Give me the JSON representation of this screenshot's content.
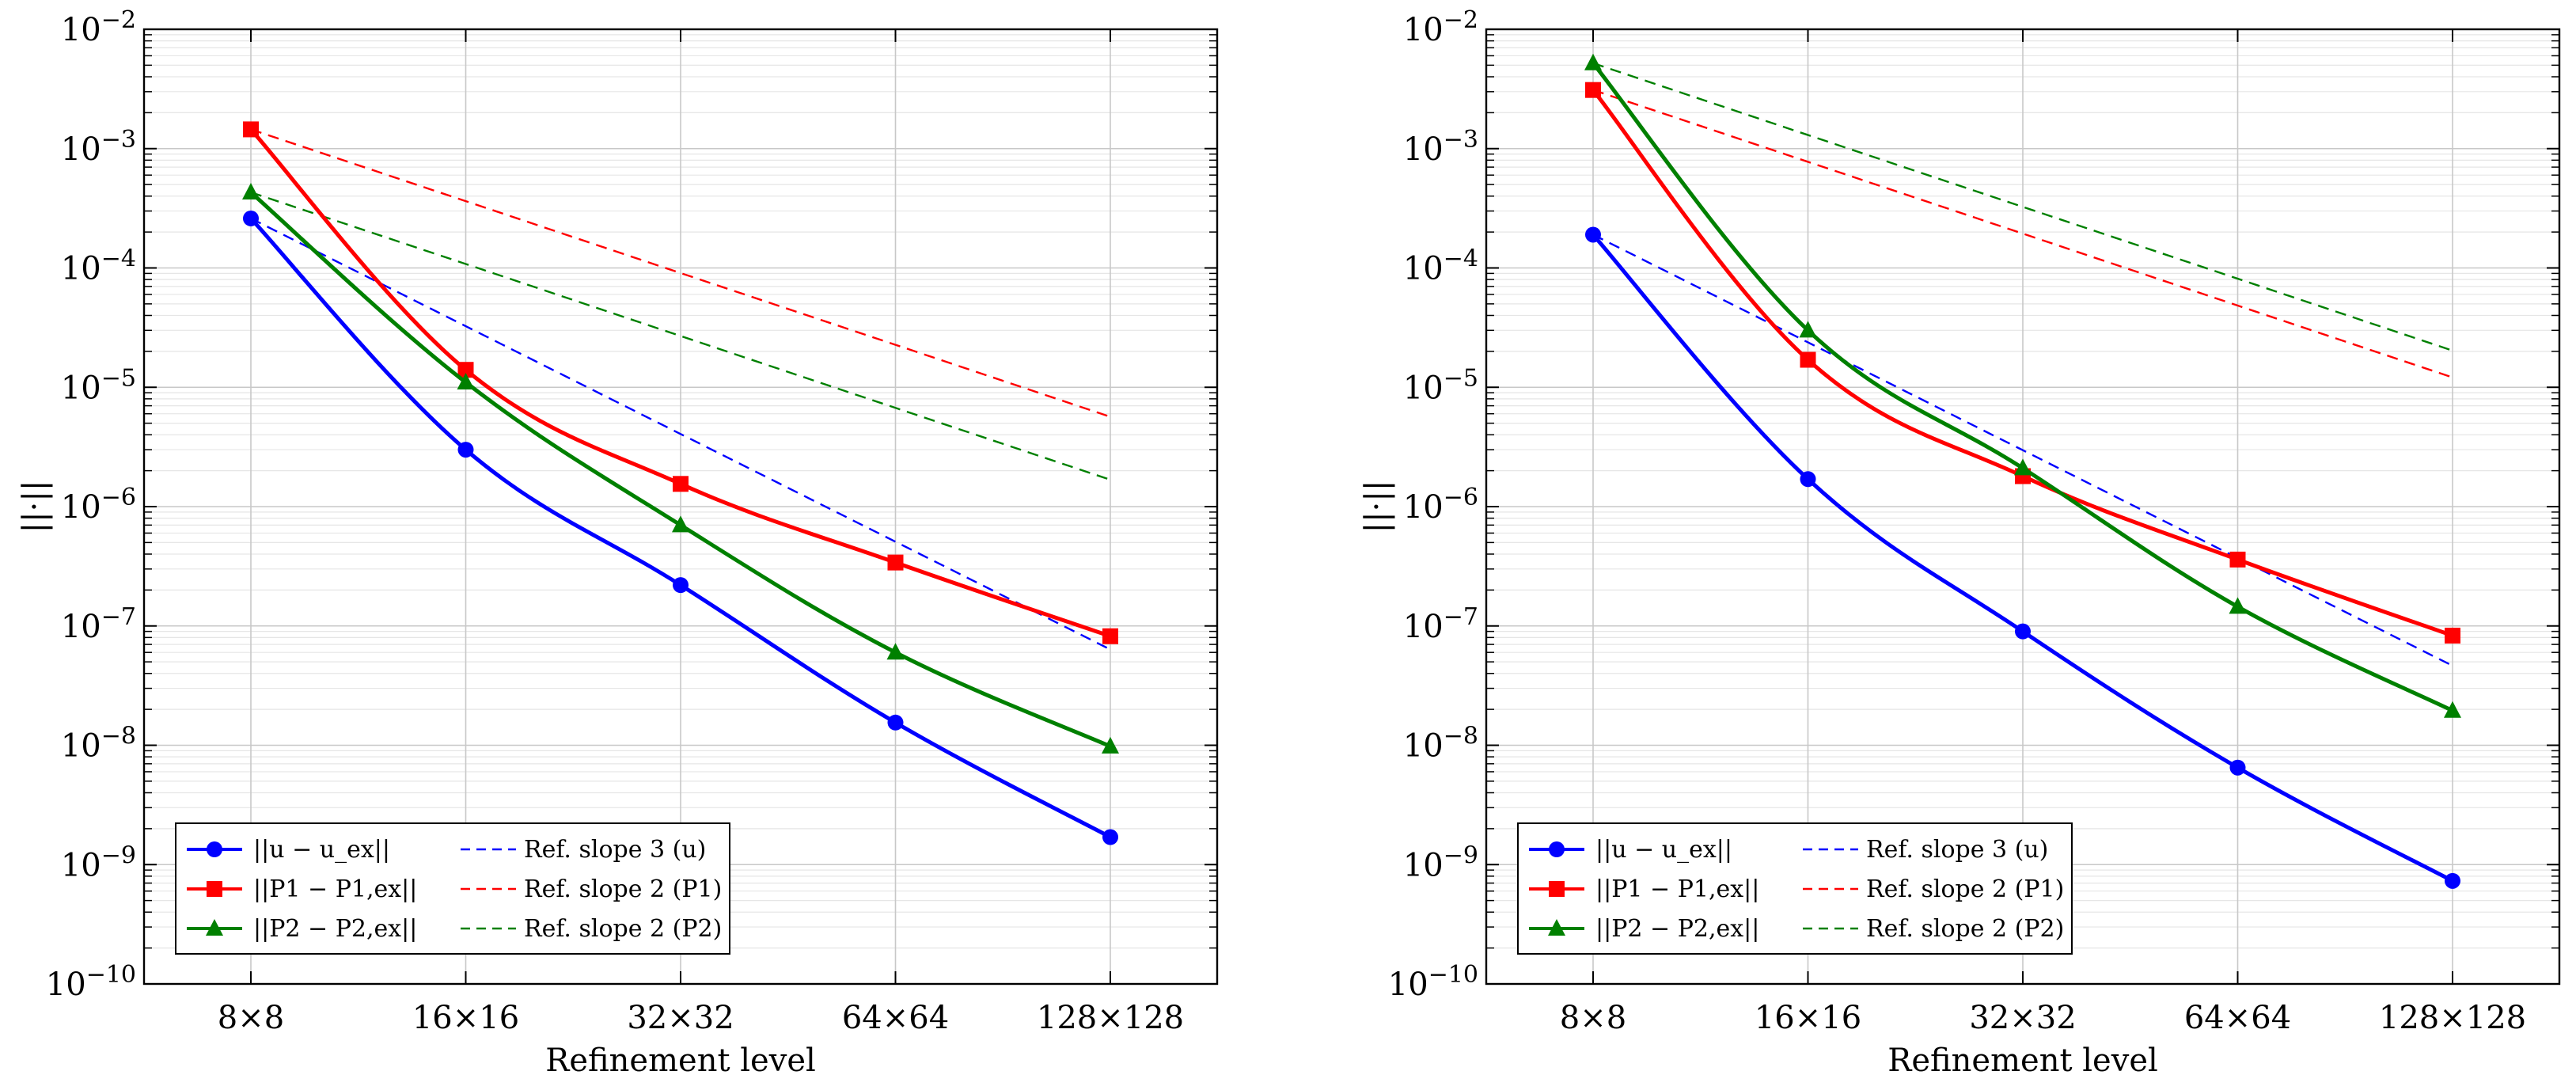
{
  "chart_data": [
    {
      "type": "line",
      "yscale": "log",
      "xlabel": "Refinement level",
      "ylabel": "||·||",
      "categories": [
        "8×8",
        "16×16",
        "32×32",
        "64×64",
        "128×128"
      ],
      "ylim": [
        1e-10,
        0.01
      ],
      "y_tick_labels": [
        "10^-10",
        "10^-9",
        "10^-8",
        "10^-7",
        "10^-6",
        "10^-5",
        "10^-4",
        "10^-3",
        "10^-2"
      ],
      "grid": true,
      "legend": "bottom-left",
      "series": [
        {
          "name": "||u − u_ex||",
          "color": "#0000ff",
          "style": "solid",
          "marker": "circle",
          "values": [
            0.00026,
            3e-06,
            2.2e-07,
            1.55e-08,
            1.7e-09
          ]
        },
        {
          "name": "||P1 − P1,ex||",
          "color": "#ff0000",
          "style": "solid",
          "marker": "square",
          "values": [
            0.00145,
            1.4e-05,
            1.55e-06,
            3.4e-07,
            8.2e-08
          ]
        },
        {
          "name": "||P2 − P2,ex||",
          "color": "#008000",
          "style": "solid",
          "marker": "triangle",
          "values": [
            0.00043,
            1.1e-05,
            7e-07,
            6e-08,
            9.8e-09
          ]
        },
        {
          "name": "Ref. slope 3 (u)",
          "color": "#0000ff",
          "style": "dashed",
          "marker": "none",
          "values": [
            0.00026,
            3.25e-05,
            4.06e-06,
            5.08e-07,
            6.35e-08
          ]
        },
        {
          "name": "Ref. slope 2 (P1)",
          "color": "#ff0000",
          "style": "dashed",
          "marker": "none",
          "values": [
            0.00145,
            0.000363,
            9.06e-05,
            2.27e-05,
            5.66e-06
          ]
        },
        {
          "name": "Ref. slope 2 (P2)",
          "color": "#008000",
          "style": "dashed",
          "marker": "none",
          "values": [
            0.00043,
            0.000108,
            2.69e-05,
            6.72e-06,
            1.68e-06
          ]
        }
      ]
    },
    {
      "type": "line",
      "yscale": "log",
      "xlabel": "Refinement level",
      "ylabel": "||·||",
      "categories": [
        "8×8",
        "16×16",
        "32×32",
        "64×64",
        "128×128"
      ],
      "ylim": [
        1e-10,
        0.01
      ],
      "y_tick_labels": [
        "10^-10",
        "10^-9",
        "10^-8",
        "10^-7",
        "10^-6",
        "10^-5",
        "10^-4",
        "10^-3",
        "10^-2"
      ],
      "grid": true,
      "legend": "bottom-left",
      "series": [
        {
          "name": "||u − u_ex||",
          "color": "#0000ff",
          "style": "solid",
          "marker": "circle",
          "values": [
            0.00019,
            1.7e-06,
            9e-08,
            6.5e-09,
            7.3e-10
          ]
        },
        {
          "name": "||P1 − P1,ex||",
          "color": "#ff0000",
          "style": "solid",
          "marker": "square",
          "values": [
            0.0031,
            1.7e-05,
            1.8e-06,
            3.6e-07,
            8.3e-08
          ]
        },
        {
          "name": "||P2 − P2,ex||",
          "color": "#008000",
          "style": "solid",
          "marker": "triangle",
          "values": [
            0.0052,
            3e-05,
            2.1e-06,
            1.45e-07,
            1.95e-08
          ]
        },
        {
          "name": "Ref. slope 3 (u)",
          "color": "#0000ff",
          "style": "dashed",
          "marker": "none",
          "values": [
            0.00019,
            2.38e-05,
            2.97e-06,
            3.71e-07,
            4.64e-08
          ]
        },
        {
          "name": "Ref. slope 2 (P1)",
          "color": "#ff0000",
          "style": "dashed",
          "marker": "none",
          "values": [
            0.0031,
            0.000775,
            0.000194,
            4.84e-05,
            1.21e-05
          ]
        },
        {
          "name": "Ref. slope 2 (P2)",
          "color": "#008000",
          "style": "dashed",
          "marker": "none",
          "values": [
            0.0052,
            0.0013,
            0.000325,
            8.13e-05,
            2.03e-05
          ]
        }
      ]
    }
  ]
}
